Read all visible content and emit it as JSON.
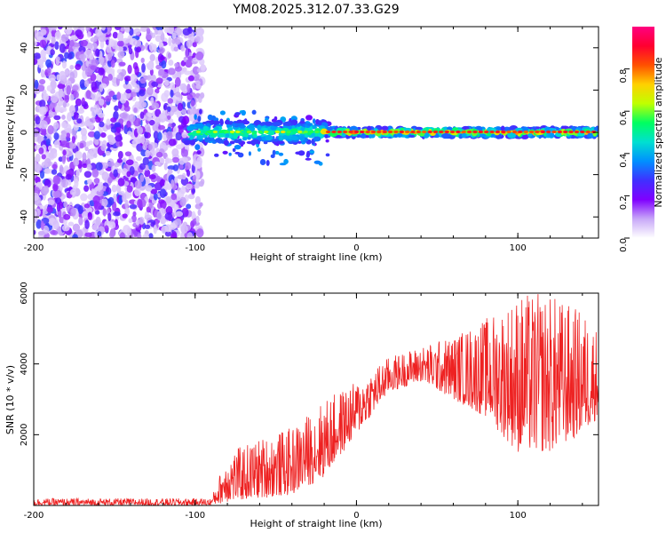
{
  "chart_data": [
    {
      "type": "heatmap",
      "title": "YM08.2025.312.07.33.G29",
      "xlabel": "Height of straight line (km)",
      "ylabel": "Frequency (Hz)",
      "xlim": [
        -200,
        150
      ],
      "ylim": [
        -50,
        50
      ],
      "xticks": [
        -200,
        -100,
        0,
        100
      ],
      "yticks": [
        -40,
        -20,
        0,
        20,
        40
      ],
      "colorbar": {
        "label": "Normalized spectral amplitude",
        "range": [
          0,
          1
        ],
        "ticks": [
          "0.0",
          "0.2",
          "0.4",
          "0.6",
          "0.8"
        ],
        "colors": [
          "#ffffff",
          "#c8a8f8",
          "#8000ff",
          "#4030ff",
          "#0090ff",
          "#00e0d0",
          "#00ff60",
          "#c0ff00",
          "#ffd000",
          "#ff5000",
          "#ff0030",
          "#ff0080"
        ]
      },
      "description_regions": {
        "noise_x": [
          -200,
          -95
        ],
        "noise_amplitude": [
          0.05,
          0.3
        ],
        "band_center_hz": 0,
        "band_x": [
          -105,
          150
        ],
        "band_peak_amplitude": 0.9
      }
    },
    {
      "type": "line",
      "xlabel": "Height of straight line (km)",
      "ylabel": "SNR (10 * v/v)",
      "xlim": [
        -200,
        150
      ],
      "ylim": [
        0,
        6000
      ],
      "xticks": [
        -200,
        -100,
        0,
        100
      ],
      "yticks": [
        2000,
        4000,
        6000
      ],
      "color": "#ee2222",
      "envelope": [
        {
          "x": -200,
          "low": 0,
          "high": 200
        },
        {
          "x": -90,
          "low": 0,
          "high": 200
        },
        {
          "x": -80,
          "low": 100,
          "high": 1500
        },
        {
          "x": -60,
          "low": 200,
          "high": 1900
        },
        {
          "x": -40,
          "low": 300,
          "high": 2200
        },
        {
          "x": -20,
          "low": 800,
          "high": 3000
        },
        {
          "x": 0,
          "low": 2000,
          "high": 3500
        },
        {
          "x": 20,
          "low": 3200,
          "high": 4200
        },
        {
          "x": 40,
          "low": 3500,
          "high": 4500
        },
        {
          "x": 60,
          "low": 3000,
          "high": 4800
        },
        {
          "x": 80,
          "low": 2500,
          "high": 5300
        },
        {
          "x": 100,
          "low": 1500,
          "high": 6000
        },
        {
          "x": 120,
          "low": 1500,
          "high": 6000
        },
        {
          "x": 140,
          "low": 2000,
          "high": 5500
        },
        {
          "x": 150,
          "low": 2500,
          "high": 5000
        }
      ]
    }
  ]
}
